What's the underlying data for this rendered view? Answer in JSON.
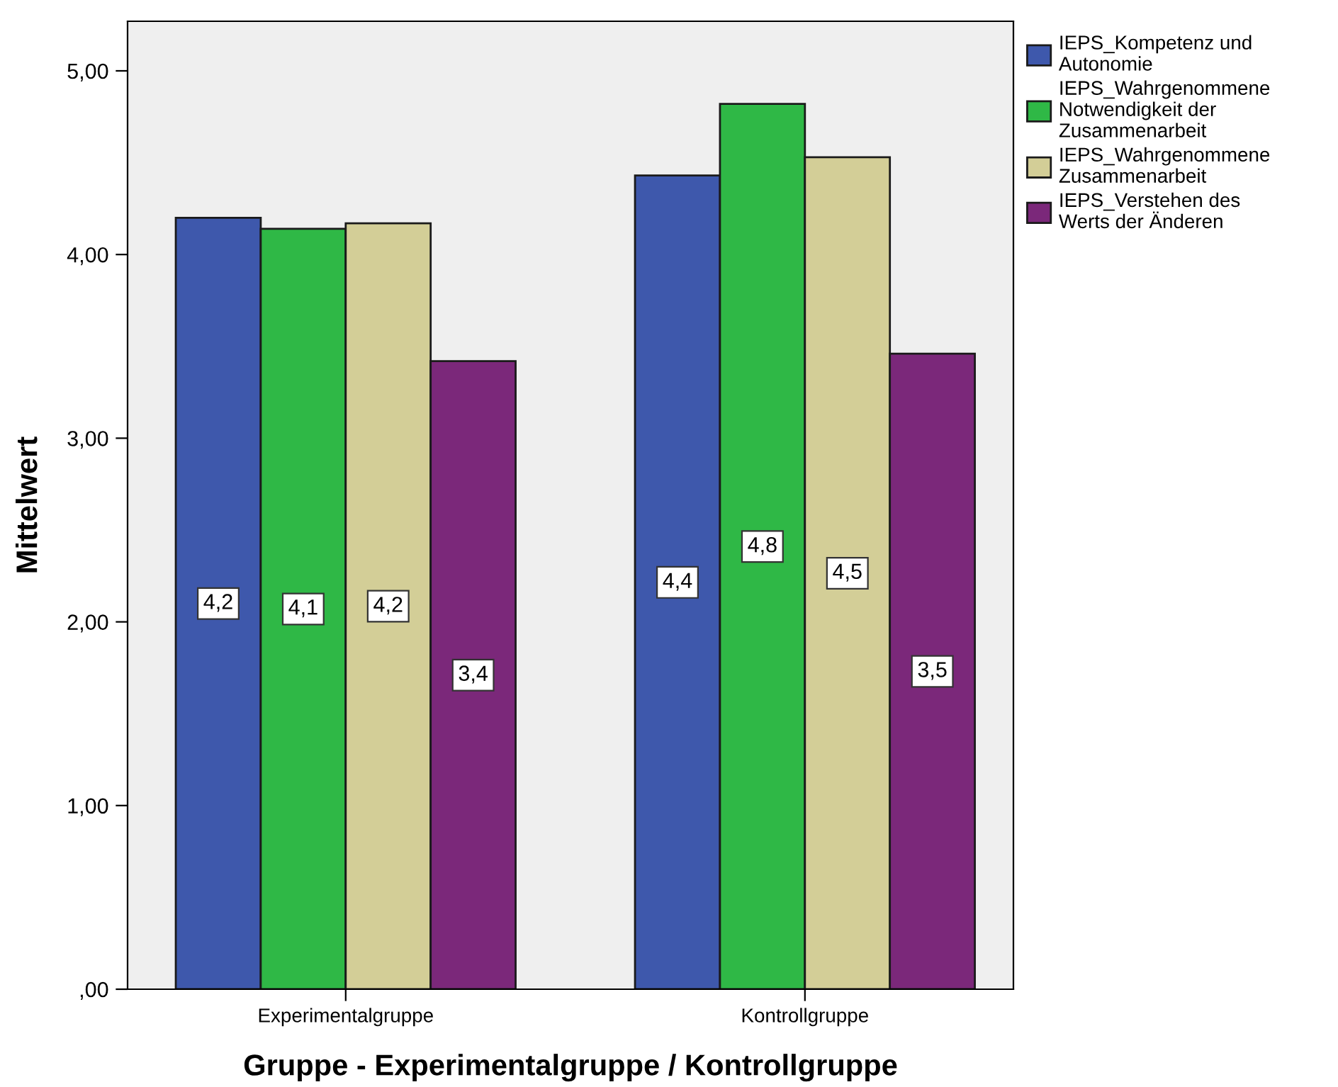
{
  "chart_data": {
    "type": "bar",
    "xlabel": "Gruppe - Experimentalgruppe / Kontrollgruppe",
    "ylabel": "Mittelwert",
    "categories": [
      "Experimentalgruppe",
      "Kontrollgruppe"
    ],
    "series": [
      {
        "name": "IEPS_Kompetenz und Autonomie",
        "color": "#3e58ac",
        "values": [
          4.2,
          4.43
        ],
        "value_labels": [
          "4,2",
          "4,4"
        ]
      },
      {
        "name": "IEPS_Wahrgenommene Notwendigkeit der Zusammenarbeit",
        "color": "#2fb846",
        "values": [
          4.14,
          4.82
        ],
        "value_labels": [
          "4,1",
          "4,8"
        ]
      },
      {
        "name": "IEPS_Wahrgenommene Zusammenarbeit",
        "color": "#d3ce97",
        "values": [
          4.17,
          4.53
        ],
        "value_labels": [
          "4,2",
          "4,5"
        ]
      },
      {
        "name": "IEPS_Verstehen des Werts der Änderen",
        "color": "#7b287a",
        "values": [
          3.42,
          3.46
        ],
        "value_labels": [
          "3,4",
          "3,5"
        ]
      }
    ],
    "ylim": [
      0,
      5.27
    ],
    "yticks": [
      {
        "value": 0,
        "label": ",00"
      },
      {
        "value": 1,
        "label": "1,00"
      },
      {
        "value": 2,
        "label": "2,00"
      },
      {
        "value": 3,
        "label": "3,00"
      },
      {
        "value": 4,
        "label": "4,00"
      },
      {
        "value": 5,
        "label": "5,00"
      }
    ],
    "grid": false,
    "legend": "top right"
  }
}
